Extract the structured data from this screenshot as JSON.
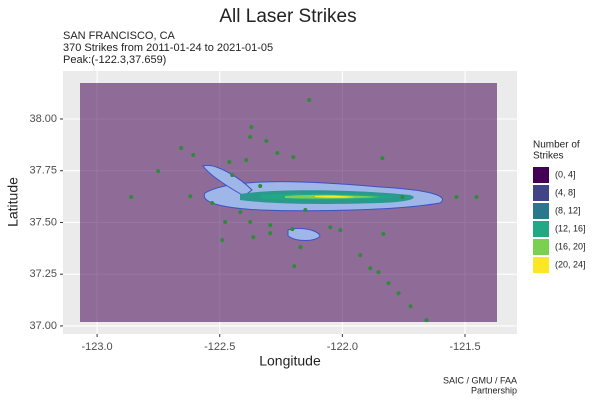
{
  "chart_data": {
    "type": "scatter",
    "title": "All Laser Strikes",
    "subtitle": [
      "SAN FRANCISCO, CA",
      "370 Strikes from 2011-01-24 to 2021-01-05",
      "Peak:(-122.3,37.659)"
    ],
    "caption": [
      "SAIC / GMU / FAA",
      "Partnership"
    ],
    "x_label": "Longitude",
    "y_label": "Latitude",
    "xlim": [
      -123.139,
      -121.288
    ],
    "ylim": [
      36.961,
      38.232
    ],
    "xticks": [
      {
        "value": -123.0,
        "label": "-123.0"
      },
      -122.5,
      {
        "value": -122.0,
        "label": "-122.0"
      },
      -121.5
    ],
    "yticks": [
      {
        "value": 37.0,
        "label": "37.00"
      },
      {
        "value": 37.25,
        "label": "37.25"
      },
      {
        "value": 37.5,
        "label": "37.50"
      },
      {
        "value": 37.75,
        "label": "37.75"
      },
      {
        "value": 38.0,
        "label": "38.00"
      }
    ],
    "grid": true,
    "legend_title": [
      "Number of",
      "Strikes"
    ],
    "legend": {
      "labels": [
        "(0, 4]",
        "(4, 8]",
        "(8, 12]",
        "(12, 16]",
        "(16, 20]",
        "(20, 24]"
      ],
      "colors": [
        "#440154",
        "#414487",
        "#2a788e",
        "#22a884",
        "#7ad151",
        "#fde725"
      ]
    },
    "series": [
      {
        "color": "#2e8b3a",
        "x": [
          -122.135,
          -122.657,
          -122.751,
          -122.861,
          -122.608,
          -122.449,
          -122.461,
          -122.376,
          -122.371,
          -122.31,
          -122.265,
          -122.2,
          -121.837,
          -122.392,
          -122.335,
          -122.416,
          -122.376,
          -122.363,
          -122.294,
          -122.294,
          -122.478,
          -122.531,
          -122.196,
          -122.204,
          -121.833,
          -122.151,
          -122.049,
          -122.008,
          -121.927,
          -121.886,
          -121.853,
          -121.812,
          -121.771,
          -121.722,
          -121.657,
          -121.535,
          -121.453,
          -121.755,
          -122.62,
          -122.49,
          -122.171
        ],
        "values": [
          38.092,
          37.86,
          37.748,
          37.623,
          37.826,
          37.729,
          37.792,
          37.913,
          37.961,
          37.894,
          37.836,
          37.816,
          37.811,
          37.802,
          37.676,
          37.55,
          37.502,
          37.429,
          37.487,
          37.448,
          37.502,
          37.594,
          37.289,
          37.468,
          37.444,
          37.56,
          37.477,
          37.463,
          37.342,
          37.279,
          37.26,
          37.207,
          37.158,
          37.095,
          37.028,
          37.623,
          37.623,
          37.623,
          37.627,
          37.415,
          37.381
        ]
      }
    ]
  }
}
